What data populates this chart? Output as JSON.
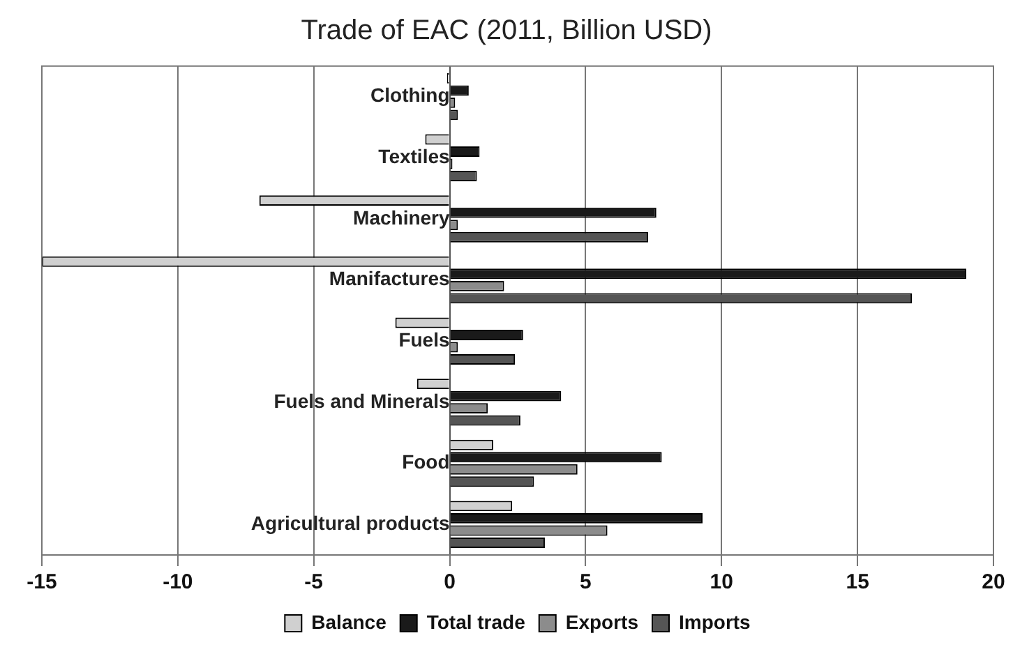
{
  "chart_data": {
    "type": "bar",
    "orientation": "horizontal",
    "title": "Trade of EAC (2011, Billion USD)",
    "categories": [
      "Clothing",
      "Textiles",
      "Machinery",
      "Manifactures",
      "Fuels",
      "Fuels and Minerals",
      "Food",
      "Agricultural products"
    ],
    "series": [
      {
        "name": "Balance",
        "color": "#d0d0d0",
        "values": [
          -0.1,
          -0.9,
          -7.0,
          -15.0,
          -2.0,
          -1.2,
          1.6,
          2.3
        ]
      },
      {
        "name": "Total trade",
        "color": "#1a1a1a",
        "values": [
          0.7,
          1.1,
          7.6,
          19.0,
          2.7,
          4.1,
          7.8,
          9.3
        ]
      },
      {
        "name": "Exports",
        "color": "#8c8c8c",
        "values": [
          0.2,
          0.1,
          0.3,
          2.0,
          0.3,
          1.4,
          4.7,
          5.8
        ]
      },
      {
        "name": "Imports",
        "color": "#555555",
        "values": [
          0.3,
          1.0,
          7.3,
          17.0,
          2.4,
          2.6,
          3.1,
          3.5
        ]
      }
    ],
    "xlim": [
      -15,
      20
    ],
    "xticks": [
      -15,
      -10,
      -5,
      0,
      5,
      10,
      15,
      20
    ],
    "grid": "x",
    "legend": "bottom"
  }
}
